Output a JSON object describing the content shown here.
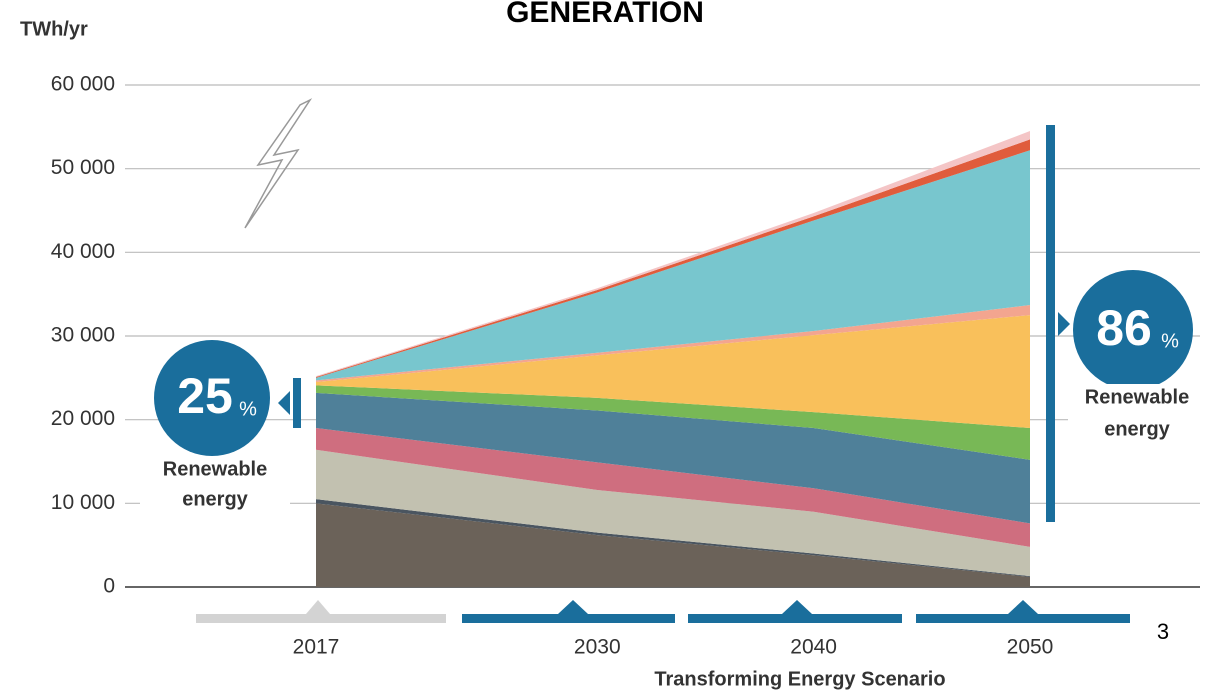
{
  "chart_data": {
    "type": "stacked_area",
    "title": "GENERATION",
    "y_label": "TWh/yr",
    "x_label": "Transforming Energy Scenario",
    "page_number": "3",
    "x": [
      2017,
      2030,
      2040,
      2050
    ],
    "xticks": [
      2017,
      2030,
      2040,
      2050
    ],
    "xlim": [
      2017,
      2050
    ],
    "ylim": [
      0,
      60000
    ],
    "yticks": [
      0,
      {
        "value": 10000,
        "label": "10 000"
      },
      {
        "value": 20000,
        "label": "20 000"
      },
      {
        "value": 30000,
        "label": "30 000"
      },
      {
        "value": 40000,
        "label": "40 000"
      },
      {
        "value": 50000,
        "label": "50 000"
      },
      {
        "value": 60000,
        "label": "60 000"
      }
    ],
    "grid": true,
    "series": [
      {
        "color": "#6b6259",
        "values": [
          10000,
          6200,
          3800,
          1200
        ]
      },
      {
        "color": "#4a5560",
        "values": [
          500,
          300,
          200,
          100
        ]
      },
      {
        "color": "#c2c1b0",
        "values": [
          5900,
          5100,
          5000,
          3500
        ]
      },
      {
        "color": "#cf6e7f",
        "values": [
          2600,
          3300,
          2800,
          2800
        ]
      },
      {
        "color": "#4f8099",
        "values": [
          4200,
          6200,
          7200,
          7600
        ]
      },
      {
        "color": "#78b856",
        "values": [
          900,
          1500,
          1900,
          3800
        ]
      },
      {
        "color": "#f9c05b",
        "values": [
          400,
          5100,
          9200,
          13500
        ]
      },
      {
        "color": "#f3a58f",
        "values": [
          200,
          300,
          500,
          1200
        ]
      },
      {
        "color": "#78c6ce",
        "values": [
          300,
          7200,
          13200,
          18500
        ]
      },
      {
        "color": "#e05c3c",
        "values": [
          100,
          300,
          500,
          1300
        ]
      },
      {
        "color": "#f4c5c6",
        "values": [
          100,
          200,
          400,
          1000
        ]
      }
    ],
    "annotations": [
      {
        "big": "25",
        "unit": "%",
        "line1": "Renewable",
        "line2": "energy"
      },
      {
        "big": "86",
        "unit": "%",
        "line1": "Renewable",
        "line2": "energy"
      }
    ]
  }
}
